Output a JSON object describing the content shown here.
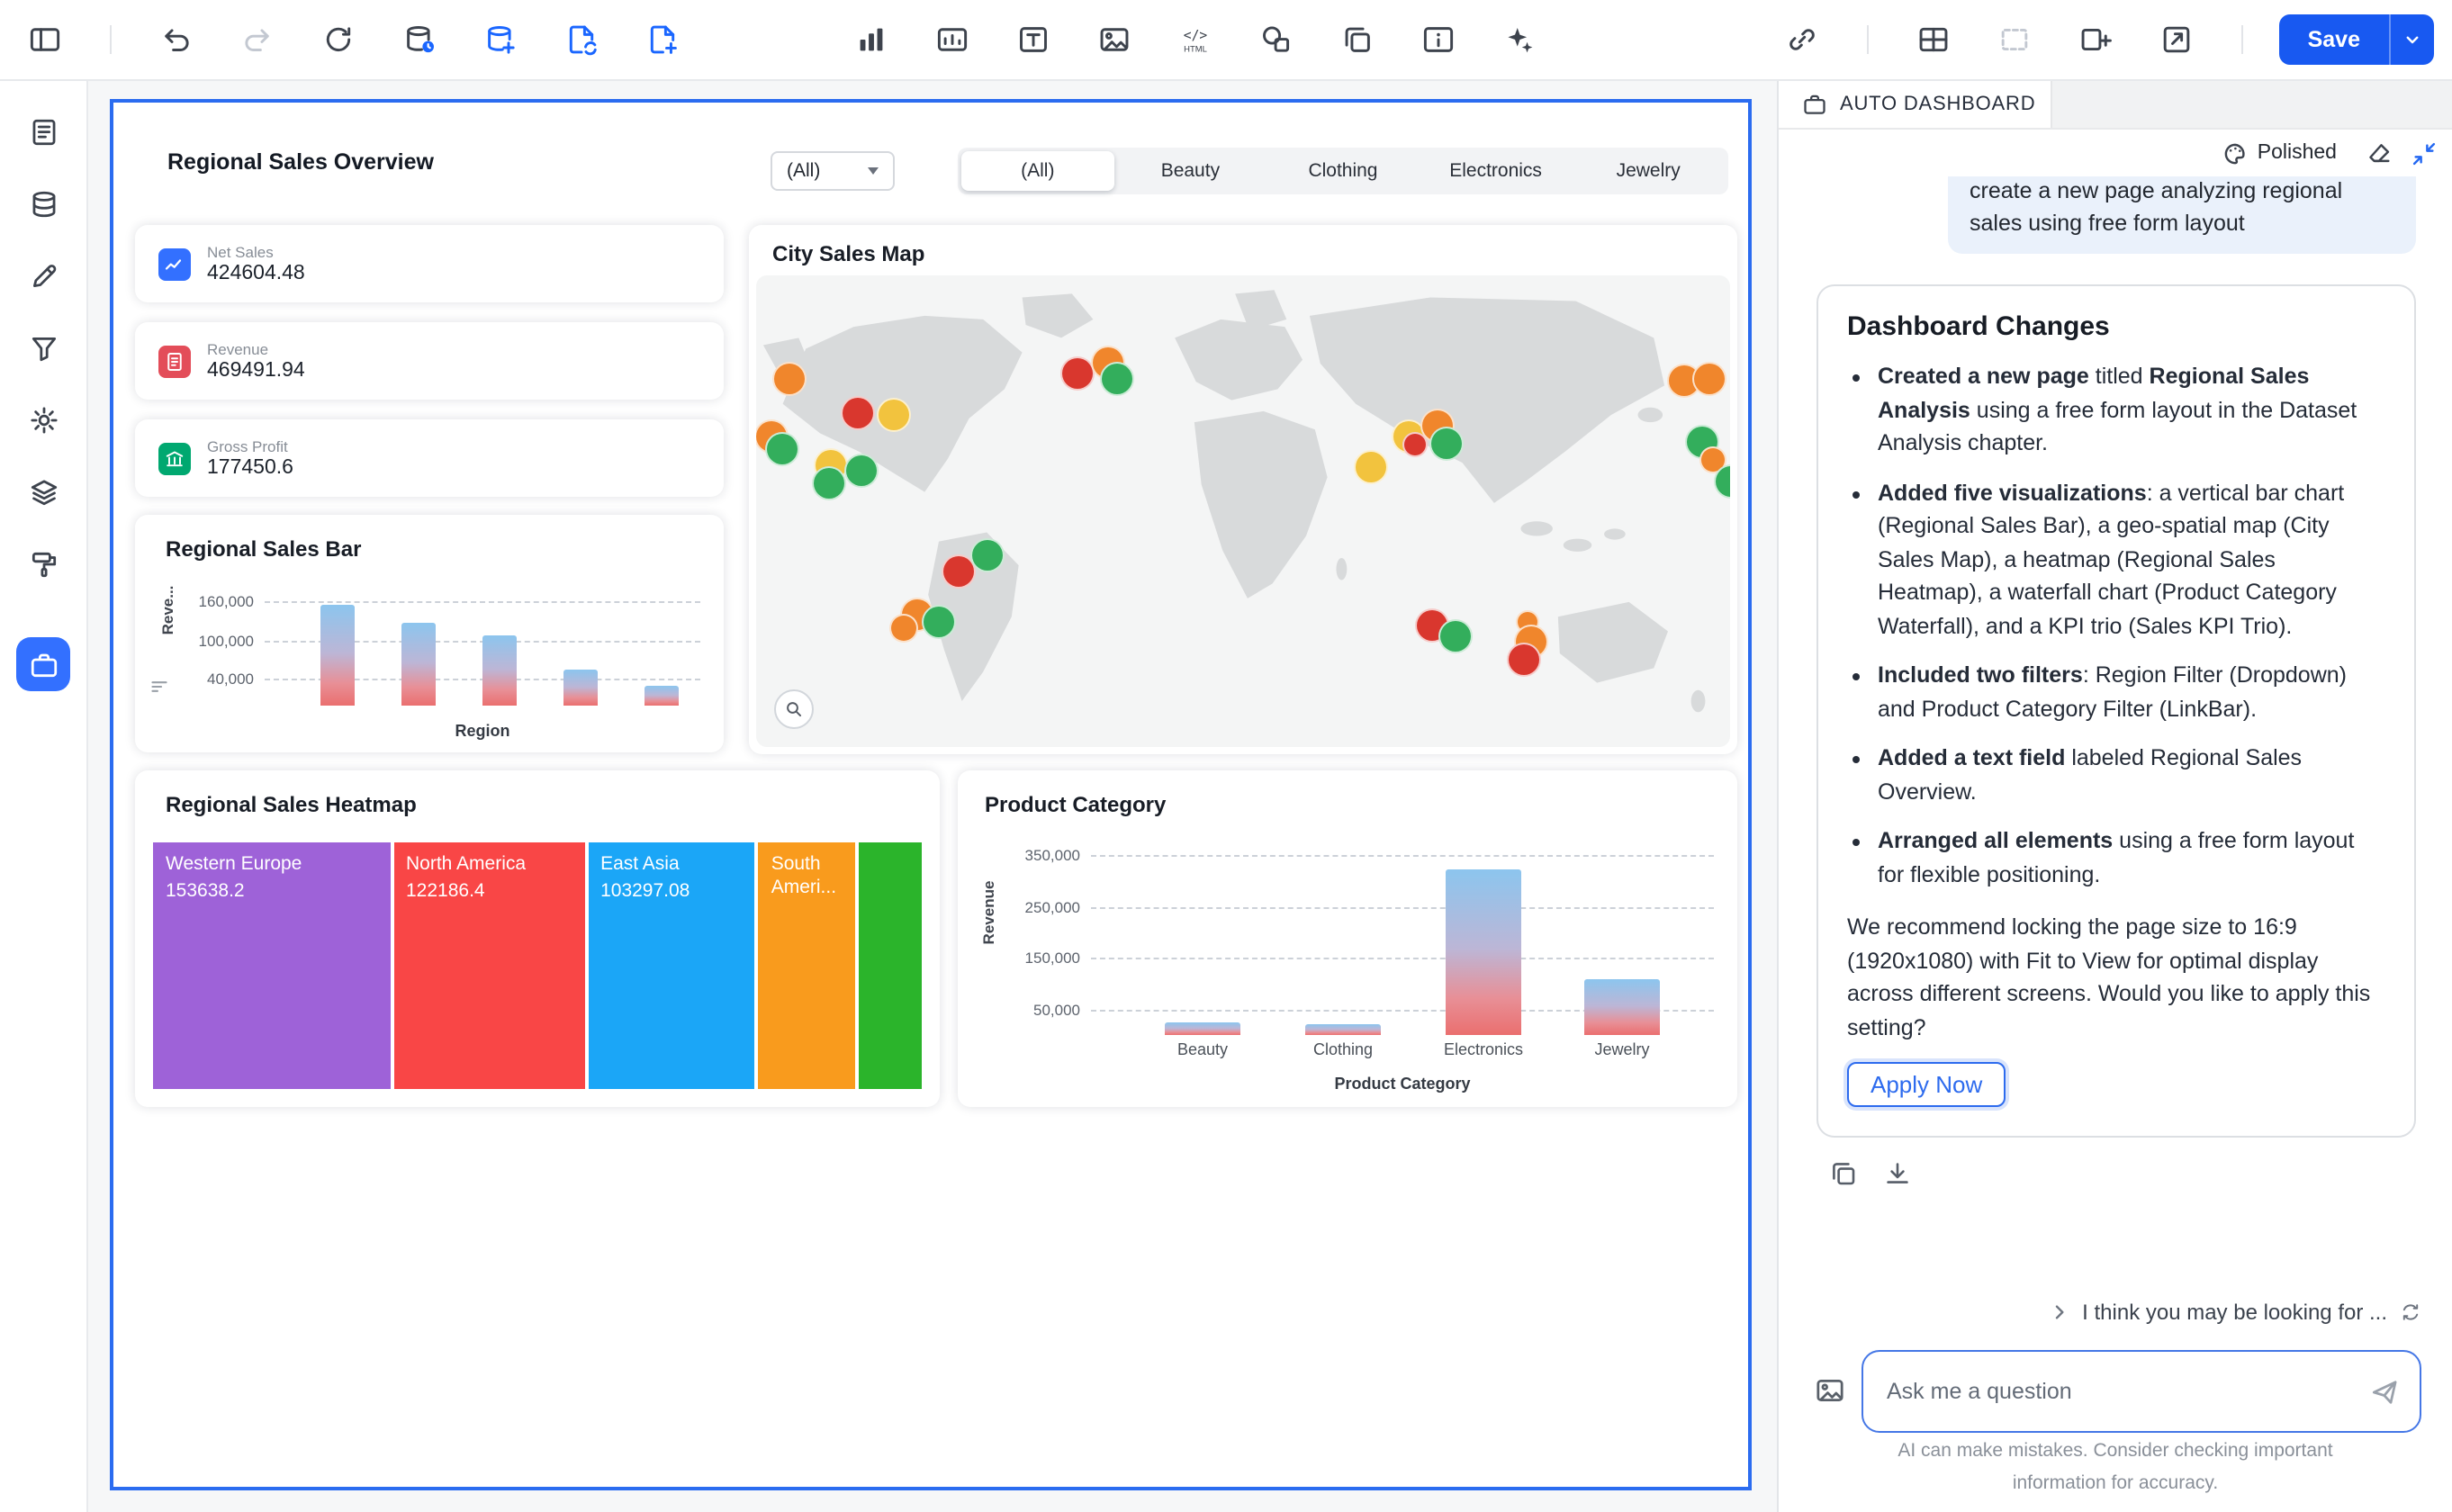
{
  "accent": {
    "blue": "#2468f2",
    "save_blue": "#1859f1"
  },
  "toolbar": {
    "save_label": "Save",
    "left_icons": [
      {
        "name": "panel-toggle-icon",
        "icon": "panel"
      },
      {
        "name": "divider"
      },
      {
        "name": "undo-icon",
        "icon": "undo"
      },
      {
        "name": "redo-icon",
        "icon": "redo",
        "disabled": true
      },
      {
        "name": "refresh-icon",
        "icon": "refresh"
      },
      {
        "name": "dataset-status-icon",
        "icon": "dbdot"
      },
      {
        "name": "add-dataset-icon",
        "icon": "dbplus",
        "accent": true
      },
      {
        "name": "duplicate-page-icon",
        "icon": "pagesync",
        "accent": true
      },
      {
        "name": "add-page-icon",
        "icon": "pageplus",
        "accent": true
      }
    ],
    "center_icons": [
      {
        "name": "insert-chart-icon",
        "icon": "barchart"
      },
      {
        "name": "insert-card-icon",
        "icon": "card"
      },
      {
        "name": "insert-text-icon",
        "icon": "text"
      },
      {
        "name": "insert-image-icon",
        "icon": "image"
      },
      {
        "name": "insert-html-icon",
        "icon": "html"
      },
      {
        "name": "insert-shape-icon",
        "icon": "shape"
      },
      {
        "name": "duplicate-widget-icon",
        "icon": "copy"
      },
      {
        "name": "insert-info-card-icon",
        "icon": "infocard"
      },
      {
        "name": "ai-sparkle-icon",
        "icon": "sparkle"
      }
    ],
    "right_icons": [
      {
        "name": "link-icon",
        "icon": "link"
      },
      {
        "name": "divider"
      },
      {
        "name": "layout-grid-icon",
        "icon": "grid"
      },
      {
        "name": "selection-icon",
        "icon": "selection",
        "disabled": true
      },
      {
        "name": "insert-panel-icon",
        "icon": "insertpanel"
      },
      {
        "name": "export-icon",
        "icon": "export"
      },
      {
        "name": "divider"
      }
    ]
  },
  "sidebar": {
    "items": [
      {
        "name": "sidebar-item-outline",
        "icon": "doclist"
      },
      {
        "name": "sidebar-item-data",
        "icon": "database"
      },
      {
        "name": "sidebar-item-edit",
        "icon": "pencil"
      },
      {
        "name": "sidebar-item-filter",
        "icon": "funnel"
      },
      {
        "name": "sidebar-item-settings",
        "icon": "gear"
      },
      {
        "name": "sidebar-item-layers",
        "icon": "layers"
      },
      {
        "name": "sidebar-item-theme",
        "icon": "paintroller"
      },
      {
        "name": "sidebar-item-dashboard",
        "icon": "briefcase",
        "active": true
      }
    ]
  },
  "canvas": {
    "page_title": "Regional Sales Overview",
    "region_dropdown_value": "(All)",
    "category_tabs": {
      "options": [
        "(All)",
        "Beauty",
        "Clothing",
        "Electronics",
        "Jewelry"
      ],
      "selected_index": 0
    },
    "kpis": [
      {
        "label": "Net Sales",
        "value": "424604.48",
        "color": "#3370ff",
        "icon": "kpi-line-chart-icon",
        "glyph": "kpiline"
      },
      {
        "label": "Revenue",
        "value": "469491.94",
        "color": "#e34d59",
        "icon": "kpi-document-icon",
        "glyph": "kpidoc"
      },
      {
        "label": "Gross Profit",
        "value": "177450.6",
        "color": "#00a870",
        "icon": "kpi-bank-icon",
        "glyph": "kpibank"
      }
    ],
    "bar_card": {
      "title": "Regional Sales Bar",
      "ylabel": "Reve...",
      "xlabel": "Region",
      "yticks": [
        "160,000",
        "100,000",
        "40,000"
      ]
    },
    "map_card": {
      "title": "City Sales Map"
    },
    "heatmap_card": {
      "title": "Regional Sales Heatmap"
    },
    "category_card": {
      "title": "Product Category",
      "ylabel": "Revenue",
      "xlabel": "Product Category",
      "yticks": [
        "350,000",
        "250,000",
        "150,000",
        "50,000"
      ],
      "categories": [
        "Beauty",
        "Clothing",
        "Electronics",
        "Jewelry"
      ]
    }
  },
  "chart_data": [
    {
      "type": "table",
      "title": "Sales KPI Trio",
      "items": [
        {
          "label": "Net Sales",
          "value": 424604.48
        },
        {
          "label": "Revenue",
          "value": 469491.94
        },
        {
          "label": "Gross Profit",
          "value": 177450.6
        }
      ]
    },
    {
      "type": "bar",
      "title": "Regional Sales Bar",
      "xlabel": "Region",
      "ylabel": "Revenue",
      "ylim": [
        0,
        180000
      ],
      "yticks": [
        160000,
        100000,
        40000
      ],
      "grid": "dashed",
      "x_tick_labels_visible": false,
      "values": [
        155000,
        127000,
        108000,
        55000,
        31000
      ]
    },
    {
      "type": "scatter",
      "title": "City Sales Map",
      "note": "bubble map over gray world basemap",
      "palette": {
        "o": "#f0862c",
        "g": "#33ae5c",
        "y": "#f2c33e",
        "r": "#d9372e"
      },
      "points": [
        [
          18,
          57,
          "o"
        ],
        [
          8,
          89,
          "o"
        ],
        [
          14,
          96,
          "g"
        ],
        [
          56,
          76,
          "r"
        ],
        [
          76,
          77,
          "y"
        ],
        [
          41,
          105,
          "y"
        ],
        [
          58,
          108,
          "g"
        ],
        [
          40,
          115,
          "g"
        ],
        [
          178,
          54,
          "r"
        ],
        [
          195,
          48,
          "o"
        ],
        [
          200,
          57,
          "g"
        ],
        [
          341,
          106,
          "y"
        ],
        [
          362,
          89,
          "y"
        ],
        [
          378,
          83,
          "o"
        ],
        [
          383,
          93,
          "g"
        ],
        [
          366,
          94,
          "r",
          14
        ],
        [
          515,
          58,
          "o"
        ],
        [
          529,
          57,
          "o"
        ],
        [
          525,
          92,
          "g"
        ],
        [
          531,
          102,
          "o",
          15
        ],
        [
          112,
          164,
          "r"
        ],
        [
          128,
          155,
          "g"
        ],
        [
          89,
          188,
          "o"
        ],
        [
          101,
          192,
          "g"
        ],
        [
          82,
          196,
          "o",
          16
        ],
        [
          375,
          194,
          "r"
        ],
        [
          388,
          200,
          "g"
        ],
        [
          428,
          192,
          "o",
          13
        ],
        [
          430,
          203,
          "o"
        ],
        [
          426,
          213,
          "r"
        ],
        [
          541,
          114,
          "g"
        ]
      ]
    },
    {
      "type": "heatmap",
      "title": "Regional Sales Heatmap",
      "blocks": [
        {
          "label": "Western Europe",
          "value_label": "153638.2",
          "value": 153638.2,
          "color": "#9e62d8",
          "width_pct": 33.7
        },
        {
          "label": "North America",
          "value_label": "122186.4",
          "value": 122186.4,
          "color": "#f94646",
          "width_pct": 26.4
        },
        {
          "label": "East Asia",
          "value_label": "103297.08",
          "value": 103297.08,
          "color": "#1ba6f7",
          "width_pct": 22.6
        },
        {
          "label": "South Ameri...",
          "value_label": "",
          "value": null,
          "color": "#f99b1d",
          "width_pct": 11.5
        },
        {
          "label": "",
          "value_label": "",
          "value": null,
          "color": "#2bb42b",
          "width_pct": 5.9
        }
      ]
    },
    {
      "type": "bar",
      "title": "Product Category",
      "xlabel": "Product Category",
      "ylabel": "Revenue",
      "ylim": [
        0,
        380000
      ],
      "yticks": [
        350000,
        250000,
        150000,
        50000
      ],
      "grid": "dashed",
      "categories": [
        "Beauty",
        "Clothing",
        "Electronics",
        "Jewelry"
      ],
      "values": [
        26000,
        23000,
        320000,
        110000
      ]
    }
  ],
  "assistant": {
    "tab_title": "AUTO DASHBOARD",
    "style_label": "Polished",
    "user_message": "create a new page analyzing regional sales using free form layout",
    "card": {
      "title": "Dashboard Changes",
      "bullets": [
        [
          {
            "b": 1,
            "t": "Created a new page"
          },
          {
            "t": " titled "
          },
          {
            "b": 1,
            "t": "Regional Sales Analysis"
          },
          {
            "t": " using a free form layout in the Dataset Analysis chapter."
          }
        ],
        [
          {
            "b": 1,
            "t": "Added five visualizations"
          },
          {
            "t": ": a vertical bar chart (Regional Sales Bar), a geo-spatial map (City Sales Map), a heatmap (Regional Sales Heatmap), a waterfall chart (Product Category Waterfall), and a KPI trio (Sales KPI Trio)."
          }
        ],
        [
          {
            "b": 1,
            "t": "Included two filters"
          },
          {
            "t": ": Region Filter (Dropdown) and Product Category Filter (LinkBar)."
          }
        ],
        [
          {
            "b": 1,
            "t": "Added a text field"
          },
          {
            "t": " labeled Regional Sales Overview."
          }
        ],
        [
          {
            "b": 1,
            "t": "Arranged all elements"
          },
          {
            "t": " using a free form layout for flexible positioning."
          }
        ]
      ],
      "note": "We recommend locking the page size to 16:9 (1920x1080) with Fit to View for optimal display across different screens. Would you like to apply this setting?",
      "apply_label": "Apply Now"
    },
    "card_actions": [
      "copy-response-icon",
      "download-response-icon"
    ],
    "suggestion": "I think you may be looking for ...",
    "input_placeholder": "Ask me a question",
    "disclaimer_line1": "AI can make mistakes. Consider checking important",
    "disclaimer_line2": "information for accuracy."
  }
}
